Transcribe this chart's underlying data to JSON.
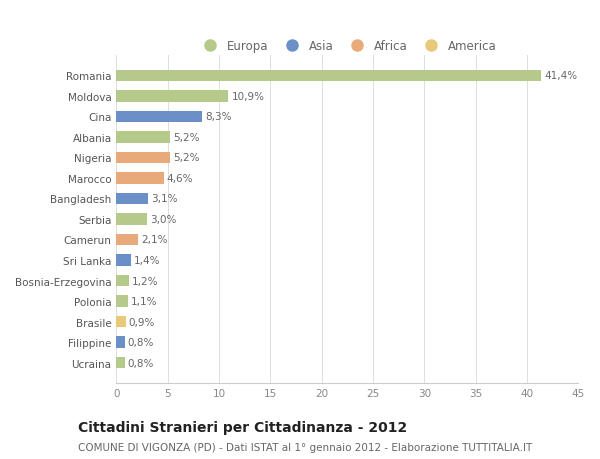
{
  "categories": [
    "Ucraina",
    "Filippine",
    "Brasile",
    "Polonia",
    "Bosnia-Erzegovina",
    "Sri Lanka",
    "Camerun",
    "Serbia",
    "Bangladesh",
    "Marocco",
    "Nigeria",
    "Albania",
    "Cina",
    "Moldova",
    "Romania"
  ],
  "values": [
    0.8,
    0.8,
    0.9,
    1.1,
    1.2,
    1.4,
    2.1,
    3.0,
    3.1,
    4.6,
    5.2,
    5.2,
    8.3,
    10.9,
    41.4
  ],
  "labels": [
    "0,8%",
    "0,8%",
    "0,9%",
    "1,1%",
    "1,2%",
    "1,4%",
    "2,1%",
    "3,0%",
    "3,1%",
    "4,6%",
    "5,2%",
    "5,2%",
    "8,3%",
    "10,9%",
    "41,4%"
  ],
  "colors": [
    "#b5c98a",
    "#6b8fc7",
    "#e8c97a",
    "#b5c98a",
    "#b5c98a",
    "#6b8fc7",
    "#e8aa7a",
    "#b5c98a",
    "#6b8fc7",
    "#e8aa7a",
    "#e8aa7a",
    "#b5c98a",
    "#6b8fc7",
    "#b5c98a",
    "#b5c98a"
  ],
  "legend_labels": [
    "Europa",
    "Asia",
    "Africa",
    "America"
  ],
  "legend_colors": [
    "#b5c98a",
    "#6b8fc7",
    "#e8aa7a",
    "#e8c97a"
  ],
  "title": "Cittadini Stranieri per Cittadinanza - 2012",
  "subtitle": "COMUNE DI VIGONZA (PD) - Dati ISTAT al 1° gennaio 2012 - Elaborazione TUTTITALIA.IT",
  "xlim": [
    0,
    45
  ],
  "xticks": [
    0,
    5,
    10,
    15,
    20,
    25,
    30,
    35,
    40,
    45
  ],
  "bg_color": "#ffffff",
  "bar_height": 0.55,
  "title_fontsize": 10,
  "subtitle_fontsize": 7.5,
  "label_fontsize": 7.5,
  "tick_fontsize": 7.5,
  "legend_fontsize": 8.5
}
